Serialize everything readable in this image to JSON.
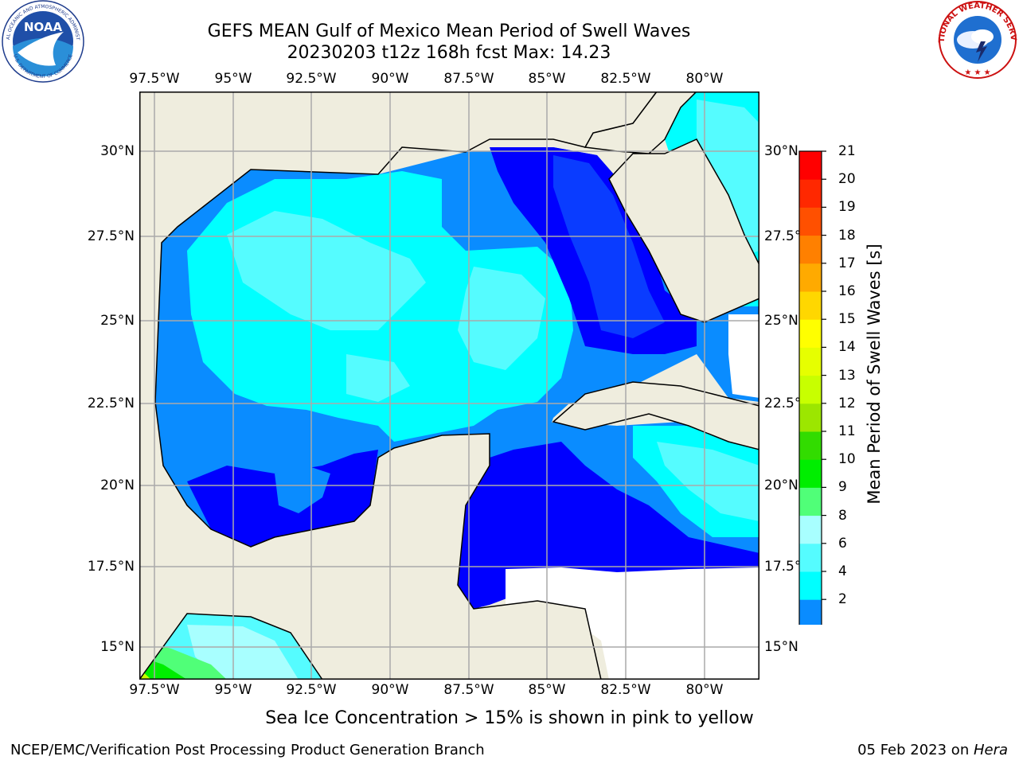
{
  "title_line1": "GEFS MEAN Gulf of Mexico Mean Period of Swell Waves",
  "title_line2": "20230203 t12z 168h fcst   Max: 14.23",
  "lon_labels": [
    "97.5°W",
    "95°W",
    "92.5°W",
    "90°W",
    "87.5°W",
    "85°W",
    "82.5°W",
    "80°W"
  ],
  "lat_labels": [
    "30°N",
    "27.5°N",
    "25°N",
    "22.5°N",
    "20°N",
    "17.5°N",
    "15°N"
  ],
  "colorbar": {
    "title": "Mean Period of Swell Waves [s]",
    "tick_labels": [
      "2",
      "4",
      "6",
      "8",
      "9",
      "10",
      "11",
      "12",
      "13",
      "14",
      "15",
      "16",
      "17",
      "18",
      "19",
      "20",
      "21"
    ],
    "colors": [
      "#0a3cff",
      "#0a8cff",
      "#00ffff",
      "#55fcff",
      "#a8ffff",
      "#50ff78",
      "#00ee00",
      "#32dc00",
      "#9ce600",
      "#c8ff00",
      "#e6ff00",
      "#ffff00",
      "#ffd700",
      "#ffaa00",
      "#ff8000",
      "#ff5000",
      "#ff2800",
      "#ff0000"
    ],
    "extend_color": "#0000ff"
  },
  "map_colors": {
    "land": "#efedde",
    "no_data": "#ffffff",
    "gridline": "#aaaaaa"
  },
  "footer_note": "Sea Ice Concentration > 15% is shown in pink to yellow",
  "credit": "NCEP/EMC/Verification Post Processing Product Generation Branch",
  "date_stamp": "05 Feb 2023 on ",
  "system_name": "Hera",
  "logos": {
    "noaa_text": "NOAA",
    "noaa_ring_text": "NATIONAL OCEANIC AND ATMOSPHERIC ADMINISTRATION",
    "noaa_ring_bottom": "U.S. DEPARTMENT OF COMMERCE",
    "nws_ring_text": "NATIONAL WEATHER SERVICE"
  }
}
